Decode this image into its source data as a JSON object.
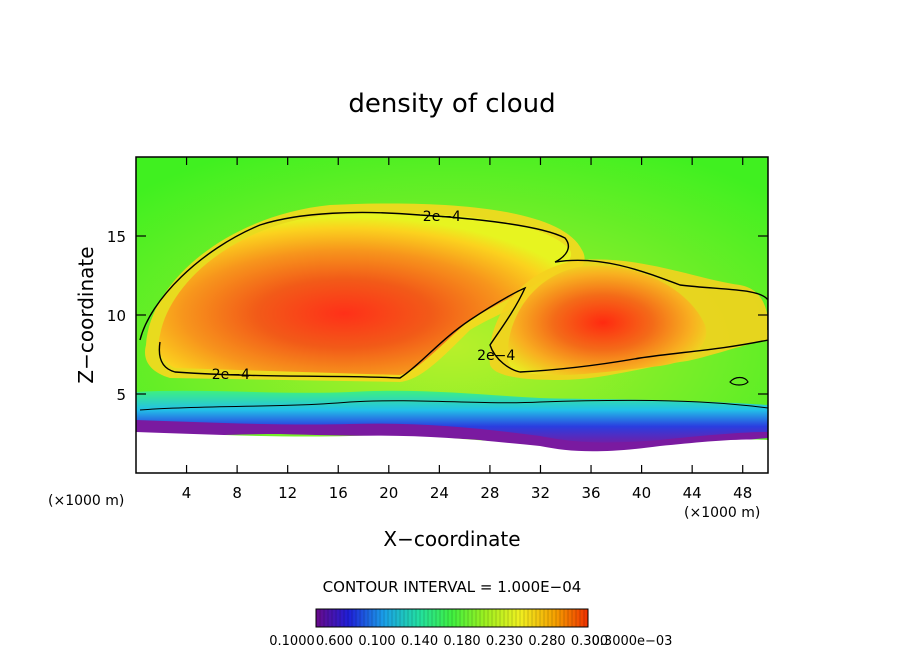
{
  "chart_data": {
    "type": "heatmap",
    "title": "density of cloud",
    "xlabel": "X−coordinate",
    "ylabel": "Z−coordinate",
    "x_unit": "(×1000 m)",
    "z_unit": "(×1000 m)",
    "xlim": [
      0,
      50
    ],
    "ylim": [
      0,
      20
    ],
    "x_ticks": [
      4,
      8,
      12,
      16,
      20,
      24,
      28,
      32,
      36,
      40,
      44,
      48
    ],
    "y_ticks": [
      5,
      10,
      15
    ],
    "contour_interval_text": "CONTOUR INTERVAL = 1.000E−04",
    "contour_labels": [
      {
        "text": "2e−4",
        "x": 24.2,
        "z": 16.0
      },
      {
        "text": "2e−4",
        "x": 7.5,
        "z": 6.0
      },
      {
        "text": "2e−4",
        "x": 28.5,
        "z": 7.2
      }
    ],
    "colorbar_labels": [
      "0.1000",
      "0.600",
      "0.100",
      "0.140",
      "0.180",
      "0.230",
      "0.280",
      "0.300",
      "0.3000e−03"
    ],
    "colorbar_colors": [
      "#6a0a8a",
      "#1f1fd8",
      "#1aa0e8",
      "#22e0a0",
      "#40f040",
      "#9cf020",
      "#f0f020",
      "#f5a000",
      "#f03000"
    ]
  }
}
